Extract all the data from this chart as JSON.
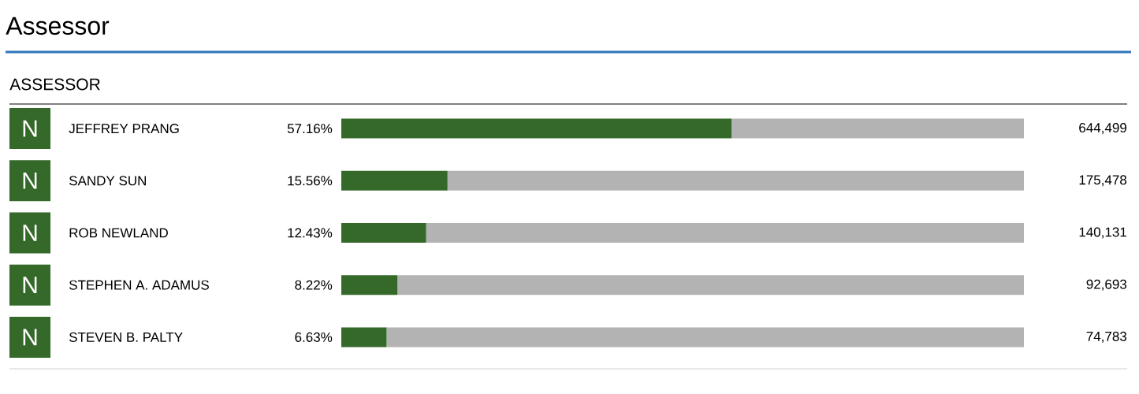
{
  "chart_data": {
    "type": "bar",
    "orientation": "horizontal",
    "stacked": true,
    "title": "Assessor",
    "subtitle": "ASSESSOR",
    "categories": [
      "JEFFREY PRANG",
      "SANDY SUN",
      "ROB NEWLAND",
      "STEPHEN A. ADAMUS",
      "STEVEN B. PALTY"
    ],
    "series": [
      {
        "color": "#35692a",
        "values": [
          57.16,
          15.56,
          12.43,
          8.22,
          6.63
        ],
        "value_labels": [
          "57.16%",
          "15.56%",
          "12.43%",
          "8.22%",
          "6.63%"
        ]
      },
      {
        "color": "#b3b3b3",
        "values": [
          42.84,
          84.44,
          87.57,
          91.78,
          93.37
        ]
      }
    ],
    "xlim": [
      0,
      100
    ],
    "tick_labels": "y",
    "annotations": [
      "N",
      "N",
      "N",
      "N",
      "N",
      "644,499",
      "175,478",
      "140,131",
      "92,693",
      "74,783"
    ]
  }
}
